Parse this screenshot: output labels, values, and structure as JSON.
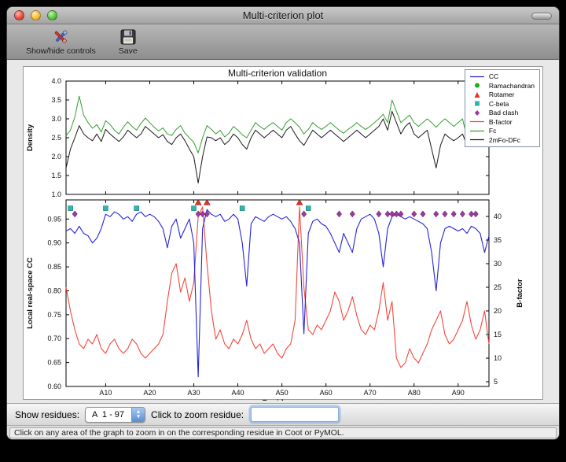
{
  "window": {
    "title": "Multi-criterion plot"
  },
  "toolbar": {
    "items": [
      {
        "label": "Show/hide controls"
      },
      {
        "label": "Save"
      }
    ]
  },
  "figure": {
    "title": "Multi-criterion validation"
  },
  "legend": [
    {
      "label": "CC",
      "glyph": "line",
      "color": "#2424d8"
    },
    {
      "label": "Ramachandran",
      "glyph": "circle",
      "color": "#1faa1f"
    },
    {
      "label": "Rotamer",
      "glyph": "triangle",
      "color": "#e03226"
    },
    {
      "label": "C-beta",
      "glyph": "square",
      "color": "#2fb5ad"
    },
    {
      "label": "Bad clash",
      "glyph": "diamond",
      "color": "#9a3aa0"
    },
    {
      "label": "B-factor",
      "glyph": "line",
      "color": "#f4473a"
    },
    {
      "label": "Fc",
      "glyph": "line",
      "color": "#33a02c"
    },
    {
      "label": "2mFo-DFc",
      "glyph": "line",
      "color": "#1a1a1a"
    }
  ],
  "chart_data": [
    {
      "type": "line",
      "title": "Multi-criterion validation",
      "ylabel": "Density",
      "ylim": [
        1.0,
        4.0
      ],
      "yticks": [
        1.0,
        1.5,
        2.0,
        2.5,
        3.0,
        3.5,
        4.0
      ],
      "x_range": [
        1,
        97
      ],
      "series": [
        {
          "name": "Fc",
          "color": "#33a02c",
          "values": [
            2.55,
            2.7,
            3.05,
            3.6,
            3.1,
            2.9,
            2.75,
            2.85,
            2.65,
            2.95,
            2.85,
            2.7,
            2.6,
            2.78,
            2.92,
            2.8,
            2.7,
            2.88,
            3.02,
            2.9,
            2.78,
            2.68,
            2.76,
            2.6,
            2.56,
            2.72,
            2.82,
            2.62,
            2.5,
            2.38,
            2.1,
            2.5,
            2.82,
            2.72,
            2.6,
            2.7,
            2.52,
            2.62,
            2.8,
            2.7,
            2.58,
            2.5,
            2.7,
            2.9,
            2.8,
            2.72,
            2.82,
            2.9,
            2.8,
            2.7,
            2.9,
            3.0,
            2.9,
            2.78,
            2.6,
            2.72,
            2.9,
            2.8,
            2.72,
            2.8,
            2.9,
            2.8,
            2.7,
            2.62,
            2.72,
            2.8,
            2.9,
            2.8,
            2.72,
            2.8,
            2.9,
            3.0,
            3.12,
            2.9,
            3.5,
            3.2,
            2.9,
            3.0,
            3.1,
            2.9,
            2.8,
            2.9,
            3.0,
            2.9,
            2.78,
            2.9,
            3.0,
            2.9,
            2.8,
            2.9,
            3.0,
            2.5,
            3.3,
            3.2,
            3.0,
            2.42,
            3.3
          ]
        },
        {
          "name": "2mFo-DFc",
          "color": "#1a1a1a",
          "values": [
            1.7,
            2.2,
            2.5,
            2.82,
            2.6,
            2.5,
            2.42,
            2.6,
            2.4,
            2.72,
            2.6,
            2.5,
            2.4,
            2.52,
            2.7,
            2.6,
            2.5,
            2.6,
            2.8,
            2.7,
            2.6,
            2.5,
            2.58,
            2.4,
            2.32,
            2.5,
            2.6,
            2.42,
            2.2,
            2.0,
            1.3,
            2.0,
            2.52,
            2.5,
            2.42,
            2.5,
            2.32,
            2.42,
            2.6,
            2.5,
            2.32,
            2.2,
            2.5,
            2.7,
            2.6,
            2.5,
            2.6,
            2.7,
            2.6,
            2.5,
            2.7,
            2.8,
            2.6,
            2.42,
            2.3,
            2.5,
            2.7,
            2.6,
            2.5,
            2.6,
            2.7,
            2.6,
            2.5,
            2.4,
            2.5,
            2.6,
            2.7,
            2.6,
            2.5,
            2.6,
            2.7,
            2.8,
            3.0,
            2.7,
            3.2,
            2.9,
            2.6,
            2.8,
            2.9,
            2.6,
            2.5,
            2.6,
            2.7,
            2.2,
            1.7,
            2.3,
            2.6,
            2.5,
            2.42,
            2.5,
            2.6,
            2.3,
            2.9,
            2.8,
            2.7,
            2.3,
            2.9
          ]
        }
      ]
    },
    {
      "type": "line+scatter",
      "xlabel": "Residue",
      "ylabel_left": "Local real-space CC",
      "ylabel_right": "B-factor",
      "ylim_left": [
        0.6,
        0.99
      ],
      "ylim_right": [
        4,
        43.5
      ],
      "yticks_left": [
        0.6,
        0.65,
        0.7,
        0.75,
        0.8,
        0.85,
        0.9,
        0.95
      ],
      "yticks_right": [
        5,
        10,
        15,
        20,
        25,
        30,
        35,
        40
      ],
      "x_range": [
        1,
        97
      ],
      "xticks": [
        {
          "v": 10,
          "label": "A10"
        },
        {
          "v": 20,
          "label": "A20"
        },
        {
          "v": 30,
          "label": "A30"
        },
        {
          "v": 40,
          "label": "A40"
        },
        {
          "v": 50,
          "label": "A50"
        },
        {
          "v": 60,
          "label": "A60"
        },
        {
          "v": 70,
          "label": "A70"
        },
        {
          "v": 80,
          "label": "A80"
        },
        {
          "v": 90,
          "label": "A90"
        }
      ],
      "series": [
        {
          "name": "B-factor",
          "axis": "right",
          "color": "#f4473a",
          "values": [
            25,
            20,
            16,
            13,
            12,
            14,
            13,
            15,
            12,
            11,
            13,
            14,
            12,
            11,
            12,
            14,
            13,
            11,
            10,
            11,
            12,
            13,
            15,
            22,
            28,
            30,
            24,
            27,
            22,
            26,
            40,
            42,
            30,
            20,
            14,
            16,
            13,
            12,
            14,
            13,
            15,
            18,
            14,
            12,
            13,
            11,
            12,
            13,
            11,
            10,
            12,
            13,
            18,
            42,
            25,
            16,
            15,
            17,
            16,
            18,
            20,
            24,
            22,
            18,
            20,
            23,
            19,
            16,
            15,
            17,
            16,
            20,
            26,
            18,
            22,
            10,
            8,
            9,
            12,
            10,
            9,
            11,
            13,
            16,
            18,
            20,
            15,
            13,
            14,
            16,
            18,
            22,
            17,
            14,
            16,
            20,
            13
          ]
        },
        {
          "name": "CC",
          "axis": "left",
          "color": "#2424d8",
          "values": [
            0.925,
            0.93,
            0.92,
            0.935,
            0.92,
            0.915,
            0.9,
            0.91,
            0.93,
            0.96,
            0.955,
            0.965,
            0.96,
            0.95,
            0.955,
            0.945,
            0.96,
            0.965,
            0.955,
            0.96,
            0.955,
            0.945,
            0.93,
            0.89,
            0.935,
            0.95,
            0.91,
            0.93,
            0.95,
            0.9,
            0.62,
            0.93,
            0.97,
            0.96,
            0.955,
            0.96,
            0.945,
            0.95,
            0.96,
            0.95,
            0.9,
            0.81,
            0.94,
            0.955,
            0.95,
            0.945,
            0.955,
            0.96,
            0.955,
            0.95,
            0.955,
            0.945,
            0.93,
            0.9,
            0.71,
            0.92,
            0.945,
            0.95,
            0.94,
            0.935,
            0.92,
            0.9,
            0.88,
            0.92,
            0.9,
            0.88,
            0.93,
            0.95,
            0.955,
            0.96,
            0.95,
            0.92,
            0.85,
            0.93,
            0.955,
            0.96,
            0.955,
            0.95,
            0.955,
            0.95,
            0.945,
            0.94,
            0.93,
            0.88,
            0.8,
            0.9,
            0.93,
            0.935,
            0.93,
            0.925,
            0.93,
            0.92,
            0.935,
            0.93,
            0.92,
            0.88,
            0.915
          ]
        }
      ],
      "markers": [
        {
          "name": "Ramachandran",
          "shape": "circle",
          "color": "#1faa1f",
          "residues": []
        },
        {
          "name": "Rotamer",
          "shape": "triangle",
          "color": "#e03226",
          "residues": [
            31,
            33,
            54
          ]
        },
        {
          "name": "C-beta",
          "shape": "square",
          "color": "#2fb5ad",
          "residues": [
            2,
            10,
            17,
            30,
            41,
            56
          ]
        },
        {
          "name": "Bad clash",
          "shape": "diamond",
          "color": "#9a3aa0",
          "residues": [
            3,
            31,
            32,
            33,
            55,
            63,
            66,
            72,
            74,
            75,
            76,
            77,
            80,
            82,
            85,
            87,
            89,
            91,
            93,
            94
          ]
        }
      ]
    }
  ],
  "controls": {
    "show_residues_label": "Show residues:",
    "chain_range": "A  1 - 97",
    "zoom_label": "Click to zoom residue:",
    "zoom_value": ""
  },
  "status": "Click on any area of the graph to zoom in on the corresponding residue in Coot or PyMOL."
}
